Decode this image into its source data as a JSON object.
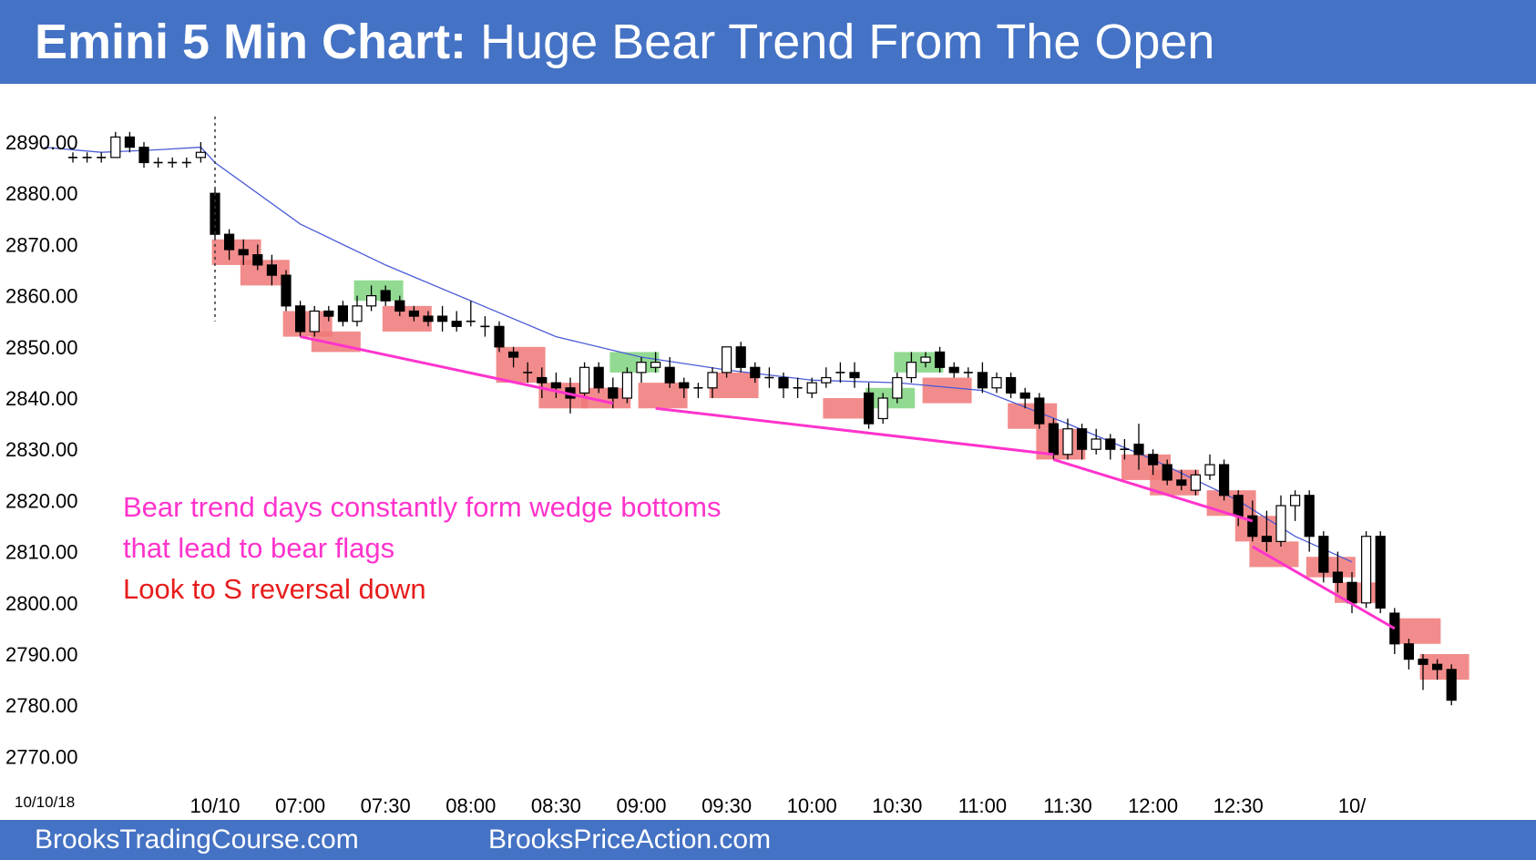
{
  "header": {
    "title_bold": "Emini 5 Min Chart:",
    "title_rest": "Huge Bear Trend From The Open"
  },
  "footer": {
    "left": "BrooksTradingCourse.com",
    "right": "BrooksPriceAction.com"
  },
  "colors": {
    "banner": "#4472c4",
    "bear_signal": "#f07878",
    "bull_signal": "#7fd37f",
    "ema": "#4a5bd6",
    "trendline": "#ff33cc",
    "annotation_magenta": "#ff33cc",
    "annotation_red": "#e81c1c"
  },
  "annotations": [
    {
      "text": "Bear trend days constantly form wedge bottoms",
      "color": "#ff33cc"
    },
    {
      "text": "that lead to bear flags",
      "color": "#ff33cc"
    },
    {
      "text": "Look to S reversal down",
      "color": "#e81c1c"
    }
  ],
  "chart_data": {
    "type": "candlestick",
    "date_label": "10/10/18",
    "y_ticks": [
      "2890.00",
      "2880.00",
      "2870.00",
      "2860.00",
      "2850.00",
      "2840.00",
      "2830.00",
      "2820.00",
      "2810.00",
      "2800.00",
      "2790.00",
      "2780.00",
      "2770.00"
    ],
    "ylim": [
      2765,
      2895
    ],
    "x_ticks": [
      {
        "label": "10/10",
        "bar": 0
      },
      {
        "label": "07:00",
        "bar": 6
      },
      {
        "label": "07:30",
        "bar": 12
      },
      {
        "label": "08:00",
        "bar": 18
      },
      {
        "label": "08:30",
        "bar": 24
      },
      {
        "label": "09:00",
        "bar": 30
      },
      {
        "label": "09:30",
        "bar": 36
      },
      {
        "label": "10:00",
        "bar": 42
      },
      {
        "label": "10:30",
        "bar": 48
      },
      {
        "label": "11:00",
        "bar": 54
      },
      {
        "label": "11:30",
        "bar": 60
      },
      {
        "label": "12:00",
        "bar": 66
      },
      {
        "label": "12:30",
        "bar": 72
      },
      {
        "label": "10/",
        "bar": 80
      }
    ],
    "grid": false,
    "prior_day_bars": [
      [
        2887,
        2888,
        2886,
        2887
      ],
      [
        2887,
        2888,
        2886,
        2887
      ],
      [
        2887,
        2888,
        2886,
        2887
      ],
      [
        2887,
        2892,
        2887,
        2891
      ],
      [
        2891,
        2892,
        2888,
        2889
      ],
      [
        2889,
        2890,
        2885,
        2886
      ],
      [
        2886,
        2887,
        2885,
        2886
      ],
      [
        2886,
        2887,
        2885,
        2886
      ],
      [
        2886,
        2887,
        2885,
        2886
      ],
      [
        2887,
        2890,
        2886,
        2888
      ]
    ],
    "bars": [
      [
        2880,
        2881,
        2871,
        2872
      ],
      [
        2872,
        2873,
        2867,
        2869
      ],
      [
        2869,
        2871,
        2866,
        2868
      ],
      [
        2868,
        2870,
        2865,
        2866
      ],
      [
        2866,
        2868,
        2862,
        2864
      ],
      [
        2864,
        2865,
        2857,
        2858
      ],
      [
        2858,
        2859,
        2852,
        2853
      ],
      [
        2853,
        2858,
        2852,
        2857
      ],
      [
        2857,
        2858,
        2855,
        2856
      ],
      [
        2858,
        2859,
        2854,
        2855
      ],
      [
        2855,
        2860,
        2854,
        2858
      ],
      [
        2858,
        2862,
        2857,
        2860
      ],
      [
        2861,
        2862,
        2858,
        2859
      ],
      [
        2859,
        2860,
        2856,
        2857
      ],
      [
        2857,
        2858,
        2855,
        2856
      ],
      [
        2856,
        2857,
        2854,
        2855
      ],
      [
        2856,
        2858,
        2853,
        2855
      ],
      [
        2855,
        2857,
        2853,
        2854
      ],
      [
        2855,
        2859,
        2854,
        2855
      ],
      [
        2854,
        2856,
        2852,
        2854
      ],
      [
        2854,
        2855,
        2849,
        2850
      ],
      [
        2849,
        2850,
        2846,
        2848
      ],
      [
        2845,
        2847,
        2843,
        2845
      ],
      [
        2844,
        2846,
        2840,
        2843
      ],
      [
        2843,
        2845,
        2840,
        2842
      ],
      [
        2842,
        2844,
        2837,
        2840
      ],
      [
        2841,
        2847,
        2840,
        2846
      ],
      [
        2846,
        2847,
        2841,
        2842
      ],
      [
        2842,
        2844,
        2838,
        2840
      ],
      [
        2840,
        2846,
        2839,
        2845
      ],
      [
        2845,
        2848,
        2843,
        2847
      ],
      [
        2846,
        2849,
        2845,
        2847
      ],
      [
        2846,
        2848,
        2842,
        2843
      ],
      [
        2843,
        2844,
        2840,
        2842
      ],
      [
        2842,
        2843,
        2840,
        2842
      ],
      [
        2842,
        2846,
        2840,
        2845
      ],
      [
        2845,
        2850,
        2844,
        2850
      ],
      [
        2850,
        2851,
        2845,
        2846
      ],
      [
        2846,
        2847,
        2843,
        2844
      ],
      [
        2844,
        2846,
        2842,
        2844
      ],
      [
        2844,
        2845,
        2840,
        2842
      ],
      [
        2842,
        2844,
        2840,
        2842
      ],
      [
        2841,
        2844,
        2840,
        2843
      ],
      [
        2843,
        2846,
        2842,
        2844
      ],
      [
        2845,
        2847,
        2843,
        2845
      ],
      [
        2845,
        2847,
        2842,
        2844
      ],
      [
        2841,
        2843,
        2834,
        2835
      ],
      [
        2836,
        2841,
        2835,
        2840
      ],
      [
        2840,
        2845,
        2839,
        2844
      ],
      [
        2844,
        2849,
        2843,
        2847
      ],
      [
        2847,
        2849,
        2846,
        2848
      ],
      [
        2849,
        2850,
        2845,
        2846
      ],
      [
        2846,
        2847,
        2844,
        2845
      ],
      [
        2845,
        2846,
        2844,
        2845
      ],
      [
        2845,
        2847,
        2841,
        2842
      ],
      [
        2842,
        2845,
        2841,
        2844
      ],
      [
        2844,
        2845,
        2840,
        2841
      ],
      [
        2841,
        2842,
        2838,
        2840
      ],
      [
        2840,
        2841,
        2834,
        2835
      ],
      [
        2835,
        2836,
        2828,
        2829
      ],
      [
        2829,
        2836,
        2828,
        2834
      ],
      [
        2834,
        2835,
        2828,
        2830
      ],
      [
        2830,
        2834,
        2829,
        2832
      ],
      [
        2832,
        2833,
        2828,
        2830
      ],
      [
        2830,
        2832,
        2828,
        2830
      ],
      [
        2831,
        2835,
        2826,
        2829
      ],
      [
        2829,
        2830,
        2825,
        2827
      ],
      [
        2827,
        2828,
        2823,
        2824
      ],
      [
        2824,
        2826,
        2822,
        2823
      ],
      [
        2822,
        2826,
        2821,
        2825
      ],
      [
        2825,
        2829,
        2824,
        2827
      ],
      [
        2827,
        2828,
        2820,
        2821
      ],
      [
        2821,
        2822,
        2815,
        2817
      ],
      [
        2817,
        2820,
        2812,
        2813
      ],
      [
        2813,
        2818,
        2810,
        2812
      ],
      [
        2812,
        2821,
        2811,
        2819
      ],
      [
        2819,
        2822,
        2816,
        2821
      ],
      [
        2821,
        2822,
        2810,
        2813
      ],
      [
        2813,
        2814,
        2804,
        2806
      ],
      [
        2806,
        2810,
        2802,
        2804
      ],
      [
        2804,
        2806,
        2798,
        2800
      ],
      [
        2800,
        2814,
        2799,
        2813
      ],
      [
        2813,
        2814,
        2798,
        2799
      ],
      [
        2798,
        2799,
        2790,
        2792
      ]
    ],
    "trailing_bars": [
      [
        2792,
        2793,
        2787,
        2789
      ],
      [
        2789,
        2790,
        2783,
        2788
      ],
      [
        2788,
        2789,
        2785,
        2787
      ],
      [
        2787,
        2788,
        2780,
        2781
      ]
    ],
    "ema": [
      [
        -12,
        2889
      ],
      [
        -8,
        2888
      ],
      [
        -4,
        2888.5
      ],
      [
        -1,
        2889
      ],
      [
        0,
        2886
      ],
      [
        6,
        2874
      ],
      [
        12,
        2866
      ],
      [
        18,
        2859
      ],
      [
        24,
        2852
      ],
      [
        30,
        2848
      ],
      [
        36,
        2845.5
      ],
      [
        42,
        2843.5
      ],
      [
        48,
        2843
      ],
      [
        54,
        2841.5
      ],
      [
        60,
        2835
      ],
      [
        66,
        2828
      ],
      [
        72,
        2820
      ],
      [
        76,
        2813
      ],
      [
        80,
        2808
      ]
    ],
    "bear_signals": [
      [
        1,
        2866,
        2871
      ],
      [
        3,
        2862,
        2867
      ],
      [
        6,
        2852,
        2857
      ],
      [
        8,
        2849,
        2853
      ],
      [
        13,
        2853,
        2858
      ],
      [
        21,
        2843,
        2850
      ],
      [
        24,
        2838,
        2843
      ],
      [
        27,
        2838,
        2842
      ],
      [
        31,
        2838,
        2843
      ],
      [
        36,
        2840,
        2845
      ],
      [
        44,
        2836,
        2840
      ],
      [
        51,
        2839,
        2844
      ],
      [
        57,
        2834,
        2839
      ],
      [
        59,
        2828,
        2834
      ],
      [
        65,
        2824,
        2829
      ],
      [
        67,
        2821,
        2826
      ],
      [
        71,
        2817,
        2822
      ],
      [
        73,
        2812,
        2817
      ],
      [
        74,
        2807,
        2812
      ],
      [
        78,
        2805,
        2809
      ],
      [
        80,
        2800,
        2804
      ],
      [
        84,
        2792,
        2797
      ],
      [
        86,
        2785,
        2790
      ]
    ],
    "bull_signals": [
      [
        11,
        2859,
        2863
      ],
      [
        29,
        2845,
        2849
      ],
      [
        47,
        2838,
        2842
      ],
      [
        49,
        2845,
        2849
      ]
    ],
    "trend_lines": [
      [
        [
          6,
          2852
        ],
        [
          28,
          2839
        ]
      ],
      [
        [
          31,
          2838
        ],
        [
          59,
          2829
        ]
      ],
      [
        [
          59,
          2828
        ],
        [
          73,
          2816
        ]
      ],
      [
        [
          73,
          2811
        ],
        [
          83,
          2795
        ]
      ]
    ],
    "open_marker_bar": 0
  }
}
